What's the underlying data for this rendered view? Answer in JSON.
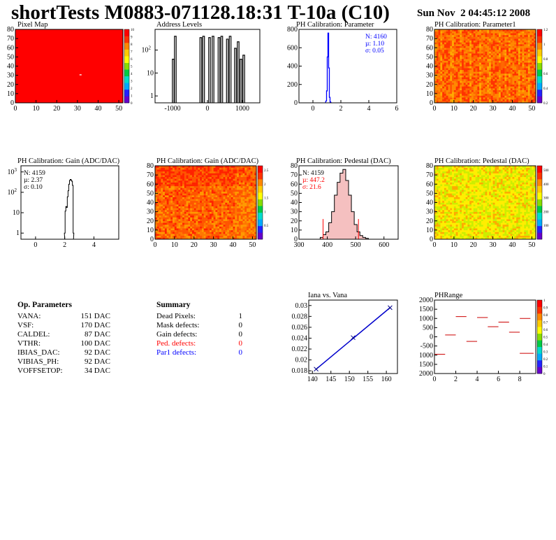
{
  "header": {
    "title": "shortTests M0883-071128.18:31 T-10a (C10)",
    "date": "Sun Nov  2 04:45:12 2008"
  },
  "panels": {
    "pixel_map": {
      "title": "Pixel Map"
    },
    "address_levels": {
      "title": "Address Levels"
    },
    "ph_param": {
      "title": "PH Calibration: Parameter",
      "stats": [
        "N: 4160",
        "µ: 1.10",
        "σ: 0.05"
      ]
    },
    "ph_param1": {
      "title": "PH Calibration: Parameter1"
    },
    "gain_hist": {
      "title": "PH Calibration: Gain (ADC/DAC)",
      "stats": [
        "N: 4159",
        "µ: 2.37",
        "σ: 0.10"
      ]
    },
    "gain_map": {
      "title": "PH Calibration: Gain (ADC/DAC)"
    },
    "ped_hist": {
      "title": "PH Calibration: Pedestal (DAC)",
      "stats": [
        "N: 4159",
        "µ: 447.2",
        "σ: 21.6"
      ]
    },
    "ped_map": {
      "title": "PH Calibration: Pedestal (DAC)"
    },
    "iana": {
      "title": "Iana vs. Vana"
    },
    "phrange": {
      "title": "PHRange"
    }
  },
  "op_params": {
    "title": "Op. Parameters",
    "rows": [
      {
        "name": "VANA:",
        "value": "151 DAC"
      },
      {
        "name": "VSF:",
        "value": "170 DAC"
      },
      {
        "name": "CALDEL:",
        "value": "87 DAC"
      },
      {
        "name": "VTHR:",
        "value": "100 DAC"
      },
      {
        "name": "IBIAS_DAC:",
        "value": "92 DAC"
      },
      {
        "name": "VIBIAS_PH:",
        "value": "92 DAC"
      },
      {
        "name": "VOFFSETOP:",
        "value": "34 DAC"
      }
    ]
  },
  "summary": {
    "title": "Summary",
    "rows": [
      {
        "name": "Dead Pixels:",
        "value": "1",
        "color": "#000000"
      },
      {
        "name": "Mask defects:",
        "value": "0",
        "color": "#000000"
      },
      {
        "name": "Gain defects:",
        "value": "0",
        "color": "#000000"
      },
      {
        "name": "Ped. defects:",
        "value": "0",
        "color": "#ff0000"
      },
      {
        "name": "Par1 defects:",
        "value": "0",
        "color": "#0000ff"
      }
    ]
  },
  "chart_data": [
    {
      "type": "heatmap",
      "title": "Pixel Map",
      "xlim": [
        0,
        52
      ],
      "ylim": [
        0,
        80
      ],
      "xticks": [
        "0",
        "10",
        "20",
        "30",
        "40",
        "50"
      ],
      "yticks": [
        "0",
        "10",
        "20",
        "30",
        "40",
        "50",
        "60",
        "70",
        "80"
      ],
      "zticks": [
        "0",
        "1",
        "2",
        "3",
        "4",
        "5",
        "6",
        "7",
        "8",
        "9",
        "10"
      ],
      "fill_value": 10,
      "outliers": [
        {
          "x": 31,
          "y": 31,
          "value": 0
        }
      ]
    },
    {
      "type": "bar",
      "title": "Address Levels",
      "log_y": true,
      "xlim": [
        -1500,
        1500
      ],
      "ylim": [
        0.5,
        800
      ],
      "xticks": [
        "-1000",
        "0",
        "1000"
      ],
      "yticks": [
        "1",
        "10",
        "10^2"
      ],
      "peaks": [
        {
          "x": -980,
          "y": 40
        },
        {
          "x": -920,
          "y": 400
        },
        {
          "x": -190,
          "y": 350
        },
        {
          "x": -110,
          "y": 400
        },
        {
          "x": 60,
          "y": 350
        },
        {
          "x": 160,
          "y": 400
        },
        {
          "x": 330,
          "y": 350
        },
        {
          "x": 410,
          "y": 400
        },
        {
          "x": 570,
          "y": 300
        },
        {
          "x": 650,
          "y": 400
        },
        {
          "x": 800,
          "y": 120
        },
        {
          "x": 880,
          "y": 230
        },
        {
          "x": 960,
          "y": 40
        },
        {
          "x": 1040,
          "y": 60
        }
      ]
    },
    {
      "type": "bar",
      "title": "PH Calibration: Parameter",
      "xlim": [
        -1,
        6
      ],
      "ylim": [
        0,
        800
      ],
      "xticks": [
        "0",
        "2",
        "4",
        "6"
      ],
      "yticks": [
        "0",
        "200",
        "400",
        "600",
        "800"
      ],
      "x": [
        0.95,
        1.0,
        1.05,
        1.1,
        1.15,
        1.2,
        1.25
      ],
      "values": [
        20,
        130,
        500,
        760,
        380,
        60,
        10
      ],
      "stats": {
        "N": 4160,
        "mean": 1.1,
        "rms": 0.05
      }
    },
    {
      "type": "heatmap",
      "title": "PH Calibration: Parameter1",
      "xlim": [
        0,
        52
      ],
      "ylim": [
        0,
        80
      ],
      "xticks": [
        "0",
        "10",
        "20",
        "30",
        "40",
        "50"
      ],
      "yticks": [
        "0",
        "10",
        "20",
        "30",
        "40",
        "50",
        "60",
        "70",
        "80"
      ],
      "zticks": [
        "0.2",
        "0.4",
        "0.6",
        "0.8",
        "1",
        "1.2"
      ]
    },
    {
      "type": "bar",
      "title": "PH Calibration: Gain (ADC/DAC)",
      "log_y": true,
      "xlim": [
        -1,
        5.7
      ],
      "ylim": [
        0.5,
        2000
      ],
      "xticks": [
        "0",
        "2",
        "4"
      ],
      "yticks": [
        "1",
        "10",
        "10^2",
        "10^3"
      ],
      "x": [
        2.0,
        2.05,
        2.1,
        2.15,
        2.2,
        2.25,
        2.3,
        2.35,
        2.4,
        2.45,
        2.5,
        2.55,
        2.6
      ],
      "values": [
        1,
        12,
        20,
        18,
        60,
        120,
        250,
        380,
        430,
        400,
        350,
        220,
        1
      ],
      "stats": {
        "N": 4159,
        "mean": 2.37,
        "rms": 0.1
      }
    },
    {
      "type": "heatmap",
      "title": "PH Calibration: Gain (ADC/DAC)",
      "xlim": [
        0,
        52
      ],
      "ylim": [
        0,
        80
      ],
      "xticks": [
        "0",
        "10",
        "20",
        "30",
        "40",
        "50"
      ],
      "yticks": [
        "0",
        "10",
        "20",
        "30",
        "40",
        "50",
        "60",
        "70",
        "80"
      ],
      "zticks": [
        "0.5",
        "1",
        "1.5",
        "2",
        "2.5"
      ]
    },
    {
      "type": "bar",
      "title": "PH Calibration: Pedestal (DAC)",
      "xlim": [
        300,
        650
      ],
      "ylim": [
        0,
        80
      ],
      "xticks": [
        "300",
        "400",
        "500",
        "600"
      ],
      "yticks": [
        "0",
        "10",
        "20",
        "30",
        "40",
        "50",
        "60",
        "70",
        "80"
      ],
      "x": [
        380,
        390,
        400,
        410,
        420,
        430,
        440,
        450,
        460,
        470,
        480,
        490,
        500,
        510,
        520,
        530,
        540
      ],
      "values": [
        2,
        5,
        8,
        18,
        30,
        48,
        62,
        72,
        76,
        64,
        48,
        30,
        16,
        8,
        4,
        2,
        1
      ],
      "cuts": [
        385,
        510
      ],
      "stats": {
        "N": 4159,
        "mean": 447.2,
        "rms": 21.6
      }
    },
    {
      "type": "heatmap",
      "title": "PH Calibration: Pedestal (DAC)",
      "xlim": [
        0,
        52
      ],
      "ylim": [
        0,
        80
      ],
      "xticks": [
        "0",
        "10",
        "20",
        "30",
        "40",
        "50"
      ],
      "yticks": [
        "0",
        "10",
        "20",
        "30",
        "40",
        "50",
        "60",
        "70",
        "80"
      ],
      "zticks": [
        "100",
        "200",
        "300",
        "400",
        "500"
      ]
    },
    {
      "type": "line",
      "title": "Iana vs. Vana",
      "xlim": [
        139,
        163
      ],
      "ylim": [
        0.0175,
        0.031
      ],
      "xticks": [
        "140",
        "145",
        "150",
        "155",
        "160"
      ],
      "yticks": [
        "0.018",
        "0.02",
        "0.022",
        "0.024",
        "0.026",
        "0.028",
        "0.03"
      ],
      "x": [
        141,
        151,
        161
      ],
      "y": [
        0.0183,
        0.0241,
        0.0296
      ]
    },
    {
      "type": "scatter",
      "title": "PHRange",
      "xlim": [
        0,
        9.5
      ],
      "ylim": [
        -2000,
        2000
      ],
      "xticks": [
        "0",
        "2",
        "4",
        "6",
        "8"
      ],
      "yticks": [
        "-2000",
        "-1500",
        "-1000",
        "-500",
        "0",
        "500",
        "1000",
        "1500",
        "2000"
      ],
      "zticks": [
        "0",
        "0.1",
        "0.2",
        "0.3",
        "0.4",
        "0.5",
        "0.6",
        "0.7",
        "0.8",
        "0.9",
        "1"
      ],
      "segments": [
        {
          "x": [
            0,
            1
          ],
          "y": -950
        },
        {
          "x": 1,
          "x2": 2,
          "y": 100
        },
        {
          "x": [
            2,
            3
          ],
          "y": 1100
        },
        {
          "x": [
            3,
            4
          ],
          "y": -250
        },
        {
          "x": [
            4,
            5
          ],
          "y": 1050
        },
        {
          "x": [
            5,
            6
          ],
          "y": 550
        },
        {
          "x": [
            6,
            7
          ],
          "y": 800
        },
        {
          "x": [
            7,
            8
          ],
          "y": 250
        },
        {
          "x": [
            8,
            9
          ],
          "y": 1000
        },
        {
          "x": [
            8,
            9.3
          ],
          "y": -900
        }
      ]
    }
  ]
}
